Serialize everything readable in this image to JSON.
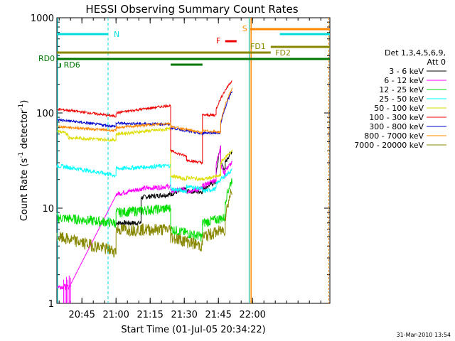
{
  "chart_data": {
    "type": "line",
    "title": "HESSI Observing Summary Count Rates",
    "xlabel": "Start Time (01-Jul-05 20:34:22)",
    "ylabel_main": "Count Rate (s",
    "ylabel_sup1": "-1",
    "ylabel_mid": " detector",
    "ylabel_sup2": "-1",
    "ylabel_end": ")",
    "yscale": "log",
    "ylim": [
      1,
      1000
    ],
    "x_ticks": [
      "20:45",
      "21:00",
      "21:15",
      "21:30",
      "21:45",
      "22:00"
    ],
    "y_ticks": [
      "1",
      "10",
      "100",
      "1000"
    ],
    "legend": {
      "header1": "Det 1,3,4,5,6,9,",
      "header2": "Att 0",
      "entries": [
        {
          "label": "3 - 6 keV",
          "color": "#000000"
        },
        {
          "label": "6 - 12 keV",
          "color": "#ff00ff"
        },
        {
          "label": "12 - 25 keV",
          "color": "#00dd00"
        },
        {
          "label": "25 - 50 keV",
          "color": "#00ffff"
        },
        {
          "label": "50 - 100 keV",
          "color": "#dddd00"
        },
        {
          "label": "100 - 300 keV",
          "color": "#ee0000"
        },
        {
          "label": "300 - 800 keV",
          "color": "#0000cc"
        },
        {
          "label": "800 - 7000 keV",
          "color": "#ff8800"
        },
        {
          "label": "7000 - 20000 keV",
          "color": "#888800"
        }
      ]
    },
    "flag_labels": [
      {
        "label": "N",
        "color": "#00dddd"
      },
      {
        "label": "F",
        "color": "#ee0000"
      },
      {
        "label": "S",
        "color": "#ff8800"
      },
      {
        "label": "FD1",
        "color": "#888800"
      },
      {
        "label": "FD2",
        "color": "#888800"
      },
      {
        "label": "RD0",
        "color": "#007700"
      },
      {
        "label": "RD6",
        "color": "#007700"
      }
    ],
    "timestamp": "31-Mar-2010 13:54"
  }
}
